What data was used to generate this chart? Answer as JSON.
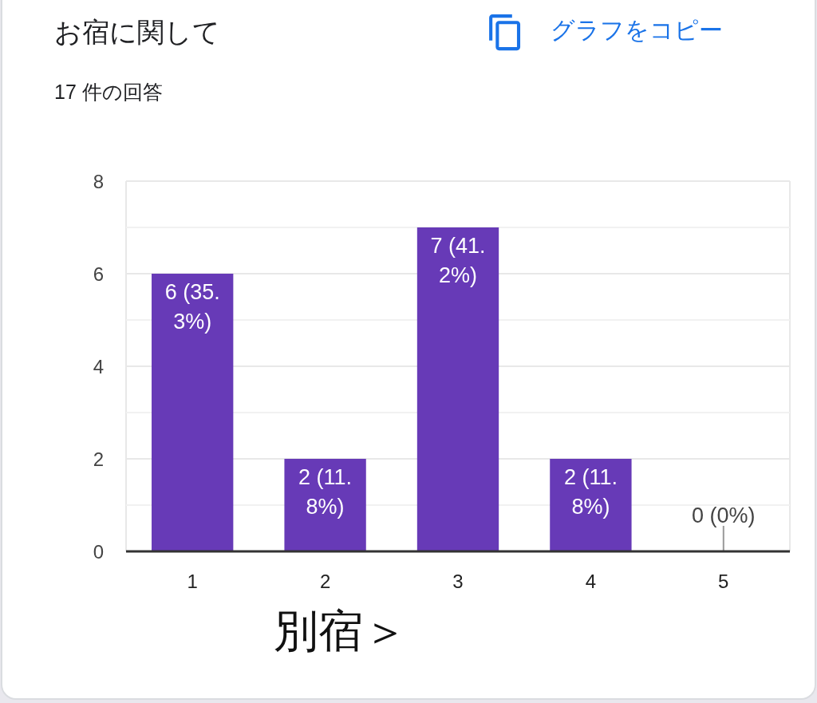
{
  "chart_data": {
    "type": "bar",
    "title": "お宿に関して",
    "subtitle": "17 件の回答",
    "xlabel": "別宿＞",
    "categories": [
      "1",
      "2",
      "3",
      "4",
      "5"
    ],
    "values": [
      6,
      2,
      7,
      2,
      0
    ],
    "color": "#673ab7",
    "value_labels": [
      "6 (35.3%)",
      "2 (11.8%)",
      "7 (41.2%)",
      "2 (11.8%)",
      "0 (0%)"
    ],
    "ylim": [
      0,
      8
    ],
    "yticks": [
      0,
      2,
      4,
      6,
      8
    ],
    "grid": "y",
    "annotations": [
      "グラフをコピー"
    ]
  }
}
